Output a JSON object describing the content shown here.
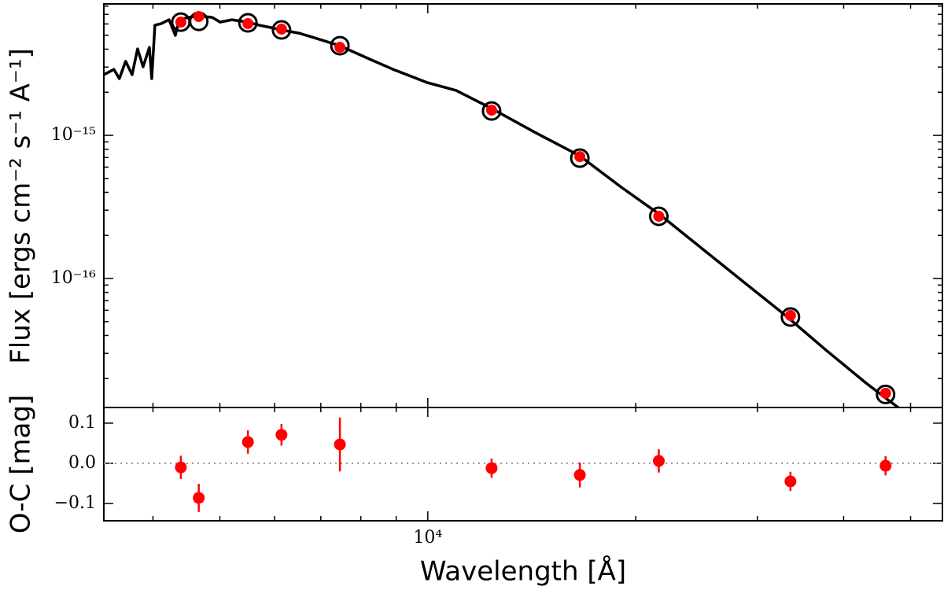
{
  "chart_data": [
    {
      "type": "sed",
      "ylabel": "Flux [ergs cm⁻² s⁻¹ A⁻¹]",
      "xlog": true,
      "ylog": true,
      "xlim": [
        3396,
        55600
      ],
      "ylim": [
        1.256e-17,
        8.28e-15
      ],
      "xticks": [
        10000
      ],
      "xticklabels": false,
      "xminor": [
        4000,
        5000,
        6000,
        7000,
        8000,
        9000,
        20000,
        30000,
        40000,
        50000
      ],
      "yticks": [
        {
          "value": 1e-15,
          "label": "10⁻¹⁵"
        },
        {
          "value": 1e-16,
          "label": "10⁻¹⁶"
        }
      ],
      "yminor": [
        2e-17,
        3e-17,
        4e-17,
        5e-17,
        6e-17,
        7e-17,
        8e-17,
        9e-17,
        2e-16,
        3e-16,
        4e-16,
        5e-16,
        6e-16,
        7e-16,
        8e-16,
        9e-16,
        2e-15,
        3e-15,
        4e-15,
        5e-15,
        6e-15,
        7e-15,
        8e-15
      ],
      "series": [
        {
          "style": "line",
          "color": "#000000",
          "x": [
            3396,
            3512,
            3576,
            3652,
            3731,
            3800,
            3871,
            3953,
            3984,
            4026,
            4112,
            4221,
            4310,
            4367,
            4507,
            4663,
            4874,
            5004,
            5205,
            5486,
            5705,
            5934,
            6141,
            6506,
            6855,
            7455,
            8235,
            8910,
            10000,
            10990,
            12370,
            14290,
            16590,
            19060,
            21620,
            25440,
            29010,
            33060,
            37710,
            42990,
            45520,
            48360
          ],
          "y": [
            2.65e-15,
            2.89e-15,
            2.49e-15,
            3.29e-15,
            2.65e-15,
            4.02e-15,
            3.01e-15,
            4.12e-15,
            2.49e-15,
            5.88e-15,
            6.03e-15,
            6.42e-15,
            4.99e-15,
            6.42e-15,
            6.67e-15,
            6.84e-15,
            6.67e-15,
            6.18e-15,
            6.42e-15,
            6.18e-15,
            5.88e-15,
            5.66e-15,
            5.45e-15,
            5.18e-15,
            4.8e-15,
            4.23e-15,
            3.41e-15,
            2.89e-15,
            2.33e-15,
            2.06e-15,
            1.54e-15,
            1.05e-15,
            7.2e-16,
            4.34e-16,
            2.82e-16,
            1.5e-16,
            9.03e-17,
            5.45e-17,
            3.16e-17,
            1.88e-17,
            1.52e-17,
            1.22e-17
          ]
        },
        {
          "style": "circle",
          "color": "#000000",
          "x": [
            4390,
            4660,
            5490,
            6140,
            7460,
            12370,
            16600,
            21600,
            33500,
            46000
          ],
          "y": [
            6.18e-15,
            6.26e-15,
            6.11e-15,
            5.45e-15,
            4.23e-15,
            1.48e-15,
            6.93e-16,
            2.72e-16,
            5.38e-17,
            1.55e-17
          ]
        },
        {
          "style": "dot",
          "color": "#ff0000",
          "x": [
            4390,
            4660,
            5490,
            6140,
            7460,
            12370,
            16600,
            21600,
            33500,
            46000
          ],
          "y": [
            6.18e-15,
            6.76e-15,
            6.03e-15,
            5.52e-15,
            4.12e-15,
            1.5e-15,
            7.1e-16,
            2.72e-16,
            5.52e-17,
            1.58e-17
          ]
        }
      ]
    },
    {
      "type": "errorbar",
      "xlabel": "Wavelength [Å]",
      "ylabel": "O-C [mag]",
      "xlog": true,
      "ylog": false,
      "xlim": [
        3396,
        55600
      ],
      "ylim": [
        -0.143,
        0.139
      ],
      "xticks": [
        {
          "value": 10000,
          "label": "10⁴"
        }
      ],
      "xticklabels": true,
      "xminor": [
        4000,
        5000,
        6000,
        7000,
        8000,
        9000,
        20000,
        30000,
        40000,
        50000
      ],
      "yticks": [
        {
          "value": -0.1,
          "label": "−0.1"
        },
        {
          "value": 0,
          "label": "0.0"
        },
        0.1
      ],
      "yminor": [],
      "hline": 0,
      "color": "#ff0000",
      "x": [
        4390,
        4660,
        5490,
        6140,
        7460,
        12370,
        16600,
        21600,
        33500,
        46000
      ],
      "values": [
        -0.01,
        -0.086,
        0.053,
        0.071,
        0.047,
        -0.012,
        -0.029,
        0.006,
        -0.045,
        -0.006
      ],
      "errors": [
        0.029,
        0.035,
        0.029,
        0.027,
        0.067,
        0.024,
        0.031,
        0.029,
        0.024,
        0.024
      ]
    }
  ]
}
